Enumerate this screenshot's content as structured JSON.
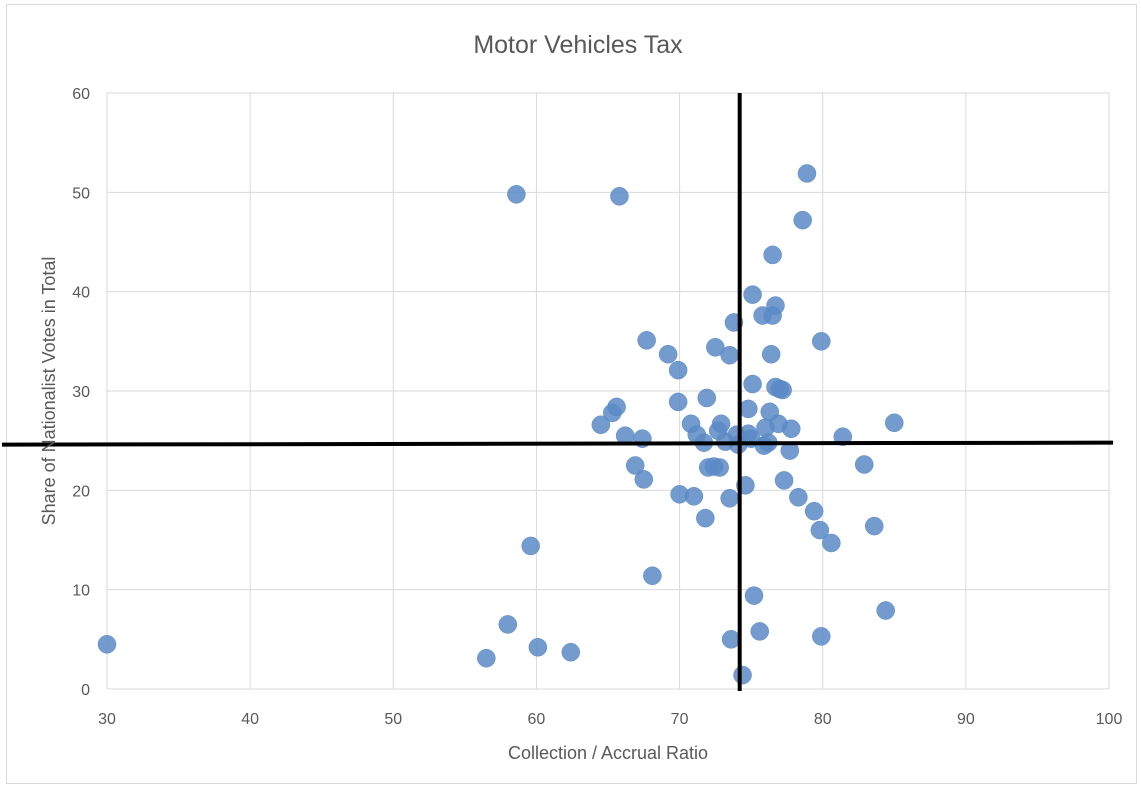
{
  "chart_data": {
    "type": "scatter",
    "title": "Motor Vehicles Tax",
    "xlabel": "Collection / Accrual Ratio",
    "ylabel": "Share of Nationalist Votes in Total",
    "xlim": [
      30,
      100
    ],
    "ylim": [
      0,
      60
    ],
    "x_ticks": [
      "30",
      "40",
      "50",
      "60",
      "70",
      "80",
      "90",
      "100"
    ],
    "y_ticks": [
      "0",
      "10",
      "20",
      "30",
      "40",
      "50",
      "60"
    ],
    "grid": true,
    "marker_color": "#5b8ac6",
    "reference_lines": [
      {
        "orientation": "vertical",
        "x": 74.2
      },
      {
        "orientation": "horizontal",
        "y_left": 24.6,
        "y_right": 24.8
      }
    ],
    "points": [
      [
        30.0,
        4.5
      ],
      [
        56.5,
        3.1
      ],
      [
        58.0,
        6.5
      ],
      [
        58.6,
        49.8
      ],
      [
        59.6,
        14.4
      ],
      [
        60.1,
        4.2
      ],
      [
        62.4,
        3.7
      ],
      [
        64.5,
        26.6
      ],
      [
        65.3,
        27.8
      ],
      [
        65.6,
        28.4
      ],
      [
        65.8,
        49.6
      ],
      [
        66.2,
        25.5
      ],
      [
        66.9,
        22.5
      ],
      [
        67.4,
        25.2
      ],
      [
        67.5,
        21.1
      ],
      [
        67.7,
        35.1
      ],
      [
        68.1,
        11.4
      ],
      [
        69.2,
        33.7
      ],
      [
        69.9,
        32.1
      ],
      [
        69.9,
        28.9
      ],
      [
        70.0,
        19.6
      ],
      [
        70.8,
        26.7
      ],
      [
        71.0,
        19.4
      ],
      [
        71.2,
        25.6
      ],
      [
        71.7,
        24.8
      ],
      [
        71.8,
        17.2
      ],
      [
        71.9,
        29.3
      ],
      [
        72.0,
        22.3
      ],
      [
        72.4,
        22.4
      ],
      [
        72.5,
        34.4
      ],
      [
        72.7,
        26.0
      ],
      [
        72.8,
        22.3
      ],
      [
        72.9,
        26.7
      ],
      [
        73.2,
        24.9
      ],
      [
        73.5,
        33.6
      ],
      [
        73.5,
        19.2
      ],
      [
        73.6,
        5.0
      ],
      [
        73.8,
        36.9
      ],
      [
        74.0,
        25.6
      ],
      [
        74.1,
        24.6
      ],
      [
        74.4,
        1.4
      ],
      [
        74.6,
        20.5
      ],
      [
        74.8,
        28.2
      ],
      [
        74.8,
        25.7
      ],
      [
        75.0,
        25.2
      ],
      [
        75.1,
        39.7
      ],
      [
        75.1,
        30.7
      ],
      [
        75.2,
        9.4
      ],
      [
        75.6,
        5.8
      ],
      [
        75.8,
        37.6
      ],
      [
        75.9,
        24.5
      ],
      [
        76.0,
        26.3
      ],
      [
        76.2,
        24.8
      ],
      [
        76.3,
        27.9
      ],
      [
        76.4,
        33.7
      ],
      [
        76.5,
        43.7
      ],
      [
        76.5,
        37.6
      ],
      [
        76.7,
        38.6
      ],
      [
        76.7,
        30.4
      ],
      [
        76.9,
        26.7
      ],
      [
        77.0,
        30.2
      ],
      [
        77.2,
        30.1
      ],
      [
        77.3,
        21.0
      ],
      [
        77.7,
        24.0
      ],
      [
        77.8,
        26.2
      ],
      [
        78.3,
        19.3
      ],
      [
        78.6,
        47.2
      ],
      [
        78.9,
        51.9
      ],
      [
        79.4,
        17.9
      ],
      [
        79.8,
        16.0
      ],
      [
        79.9,
        35.0
      ],
      [
        79.9,
        5.3
      ],
      [
        80.6,
        14.7
      ],
      [
        81.4,
        25.4
      ],
      [
        82.9,
        22.6
      ],
      [
        83.6,
        16.4
      ],
      [
        84.4,
        7.9
      ],
      [
        85.0,
        26.8
      ]
    ]
  }
}
